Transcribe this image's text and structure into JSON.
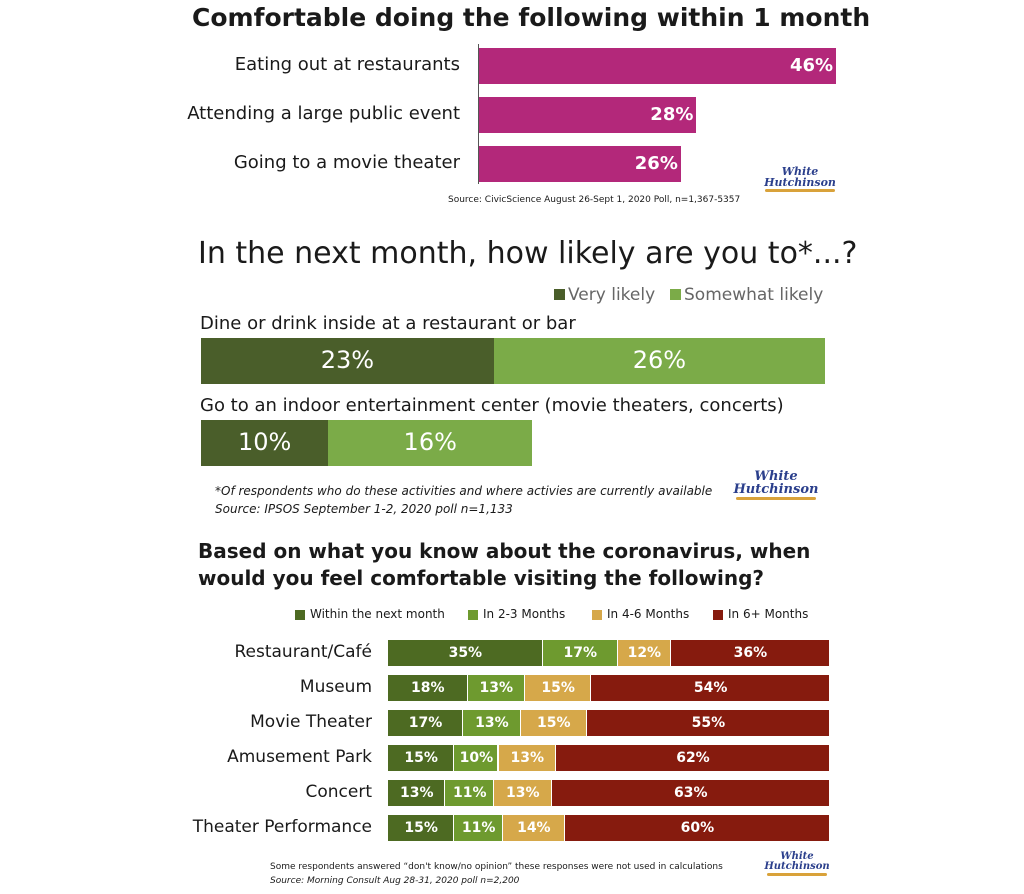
{
  "chart_data": [
    {
      "type": "bar",
      "orientation": "horizontal",
      "title": "Comfortable doing the following within 1 month",
      "categories": [
        "Eating out at restaurants",
        "Attending a large public event",
        "Going to a movie theater"
      ],
      "values": [
        46,
        28,
        26
      ],
      "value_labels": [
        "46%",
        "28%",
        "26%"
      ],
      "color": "#b3287a",
      "xlim": [
        0,
        46
      ],
      "source": "Source: CivicScience August 26-Sept 1, 2020 Poll, n=1,367-5357"
    },
    {
      "type": "bar",
      "orientation": "horizontal",
      "stacked": true,
      "title": "In the next month, how likely are you to*...?",
      "legend_position": "top-right",
      "series": [
        {
          "name": "Very likely",
          "color": "#4a5e2a",
          "values": [
            23,
            10
          ],
          "labels": [
            "23%",
            "10%"
          ]
        },
        {
          "name": "Somewhat likely",
          "color": "#7bab48",
          "values": [
            26,
            16
          ],
          "labels": [
            "26%",
            "16%"
          ]
        }
      ],
      "categories": [
        "Dine or drink inside at a restaurant or bar",
        "Go to an indoor entertainment center (movie theaters, concerts)"
      ],
      "footnote": "*Of respondents who do these activities and where activies are currently available",
      "source": "Source: IPSOS September 1-2, 2020 poll n=1,133"
    },
    {
      "type": "bar",
      "orientation": "horizontal",
      "stacked": true,
      "title_line1": "Based on what you know about the coronavirus, when",
      "title_line2": "would you feel comfortable visiting the following?",
      "legend_position": "top",
      "categories": [
        "Restaurant/Café",
        "Museum",
        "Movie Theater",
        "Amusement Park",
        "Concert",
        "Theater Performance"
      ],
      "series": [
        {
          "name": "Within the next month",
          "color": "#4d6a22",
          "values": [
            35,
            18,
            17,
            15,
            13,
            15
          ]
        },
        {
          "name": "In 2-3 Months",
          "color": "#6e9a2f",
          "values": [
            17,
            13,
            13,
            10,
            11,
            11
          ]
        },
        {
          "name": "In 4-6 Months",
          "color": "#d6a84a",
          "values": [
            12,
            15,
            15,
            13,
            13,
            14
          ]
        },
        {
          "name": "In 6+ Months",
          "color": "#861b0e",
          "values": [
            36,
            54,
            55,
            62,
            63,
            60
          ]
        }
      ],
      "note": "Some respondents answered “don't know/no opinion”  these responses were not used in calculations",
      "source": "Source: Morning Consult Aug 28-31, 2020 poll n=2,200"
    }
  ],
  "logo": {
    "line1": "White",
    "line2": "Hutchinson"
  }
}
